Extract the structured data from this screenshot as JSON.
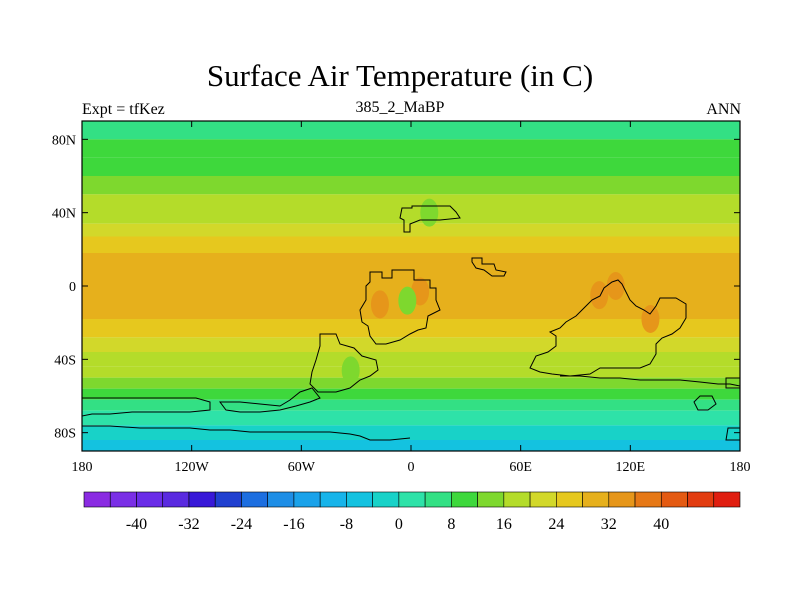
{
  "chart_data": {
    "type": "heatmap",
    "title": "Surface Air Temperature (in C)",
    "left_label": "Expt = tfKez",
    "center_label": "385_2_MaBP",
    "right_label": "ANN",
    "xlabel": "",
    "ylabel": "",
    "x_ticks": [
      "180",
      "120W",
      "60W",
      "0",
      "60E",
      "120E",
      "180"
    ],
    "y_ticks": [
      "80N",
      "40N",
      "0",
      "40S",
      "80S"
    ],
    "xlim": [
      -180,
      180
    ],
    "ylim": [
      -90,
      90
    ],
    "colorbar_labels": [
      "-40",
      "-32",
      "-24",
      "-16",
      "-8",
      "0",
      "8",
      "16",
      "24",
      "32",
      "40"
    ],
    "colorbar_levels": [
      -48,
      -44,
      -40,
      -36,
      -32,
      -28,
      -24,
      -20,
      -16,
      -12,
      -8,
      -4,
      0,
      4,
      8,
      12,
      16,
      20,
      24,
      28,
      32,
      36,
      40,
      44,
      48
    ],
    "colorbar_colors": [
      "#8a2be2",
      "#7a2fe6",
      "#6a2de8",
      "#5a2ae0",
      "#3818d8",
      "#2040d0",
      "#1c6ee0",
      "#1e8ee6",
      "#1aa2ea",
      "#17b4ea",
      "#14c2e0",
      "#18d2c8",
      "#2ee2a8",
      "#33e084",
      "#3ed83c",
      "#7ed82e",
      "#b4dc2a",
      "#d2d82a",
      "#e6c81e",
      "#e6b01c",
      "#e6961a",
      "#e67816",
      "#e45a12",
      "#e23c10",
      "#e01e10"
    ],
    "field_bands": [
      {
        "lat_max": 90,
        "lat_min": 80,
        "value": 6
      },
      {
        "lat_max": 80,
        "lat_min": 70,
        "value": 8
      },
      {
        "lat_max": 70,
        "lat_min": 60,
        "value": 10
      },
      {
        "lat_max": 60,
        "lat_min": 50,
        "value": 13
      },
      {
        "lat_max": 50,
        "lat_min": 42,
        "value": 16
      },
      {
        "lat_max": 42,
        "lat_min": 34,
        "value": 19
      },
      {
        "lat_max": 34,
        "lat_min": 27,
        "value": 22
      },
      {
        "lat_max": 27,
        "lat_min": 18,
        "value": 25
      },
      {
        "lat_max": 18,
        "lat_min": -18,
        "value": 29
      },
      {
        "lat_max": -18,
        "lat_min": -28,
        "value": 25
      },
      {
        "lat_max": -28,
        "lat_min": -36,
        "value": 22
      },
      {
        "lat_max": -36,
        "lat_min": -44,
        "value": 19
      },
      {
        "lat_max": -44,
        "lat_min": -50,
        "value": 16
      },
      {
        "lat_max": -50,
        "lat_min": -56,
        "value": 13
      },
      {
        "lat_max": -56,
        "lat_min": -62,
        "value": 9
      },
      {
        "lat_max": -62,
        "lat_min": -68,
        "value": 4
      },
      {
        "lat_max": -68,
        "lat_min": -76,
        "value": 0
      },
      {
        "lat_max": -76,
        "lat_min": -84,
        "value": -4
      },
      {
        "lat_max": -84,
        "lat_min": -90,
        "value": -8
      }
    ],
    "hot_spots": [
      {
        "lon": -17,
        "lat": -10,
        "value": 34
      },
      {
        "lon": 5,
        "lat": -3,
        "value": 34
      },
      {
        "lon": 103,
        "lat": -5,
        "value": 34
      },
      {
        "lon": 112,
        "lat": 0,
        "value": 34
      },
      {
        "lon": 131,
        "lat": -18,
        "value": 34
      },
      {
        "lon": 10,
        "lat": 40,
        "value": 12
      },
      {
        "lon": -33,
        "lat": -46,
        "value": 12
      },
      {
        "lon": -2,
        "lat": -8,
        "value": 14
      }
    ],
    "grid": false
  }
}
